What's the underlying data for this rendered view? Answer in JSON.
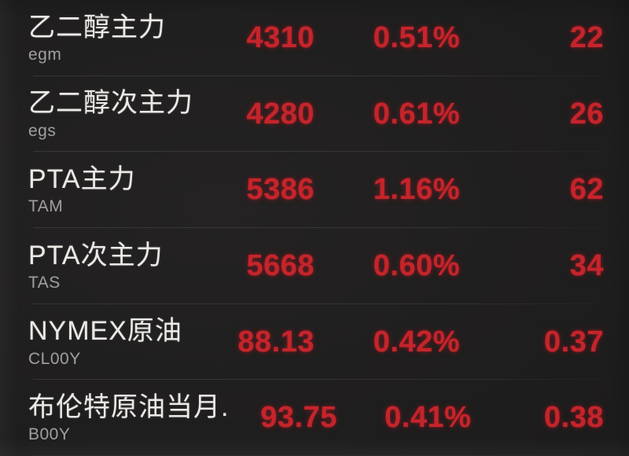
{
  "theme": {
    "background": "#1e1d1d",
    "text_primary": "#eceae6",
    "text_secondary": "#9d9c9a",
    "up_color": "#c4252b",
    "separator": "rgba(255,255,255,0.10)"
  },
  "quotes": {
    "columns": [
      "name",
      "symbol",
      "price",
      "change_percent",
      "change"
    ],
    "rows": [
      {
        "name": "乙二醇主力",
        "symbol": "egm",
        "price": "4310",
        "change_percent": "0.51%",
        "change": "22"
      },
      {
        "name": "乙二醇次主力",
        "symbol": "egs",
        "price": "4280",
        "change_percent": "0.61%",
        "change": "26"
      },
      {
        "name": "PTA主力",
        "symbol": "TAM",
        "price": "5386",
        "change_percent": "1.16%",
        "change": "62"
      },
      {
        "name": "PTA次主力",
        "symbol": "TAS",
        "price": "5668",
        "change_percent": "0.60%",
        "change": "34"
      },
      {
        "name": "NYMEX原油",
        "symbol": "CL00Y",
        "price": "88.13",
        "change_percent": "0.42%",
        "change": "0.37"
      },
      {
        "name": "布伦特原油当月...",
        "symbol": "B00Y",
        "price": "93.75",
        "change_percent": "0.41%",
        "change": "0.38"
      }
    ]
  }
}
